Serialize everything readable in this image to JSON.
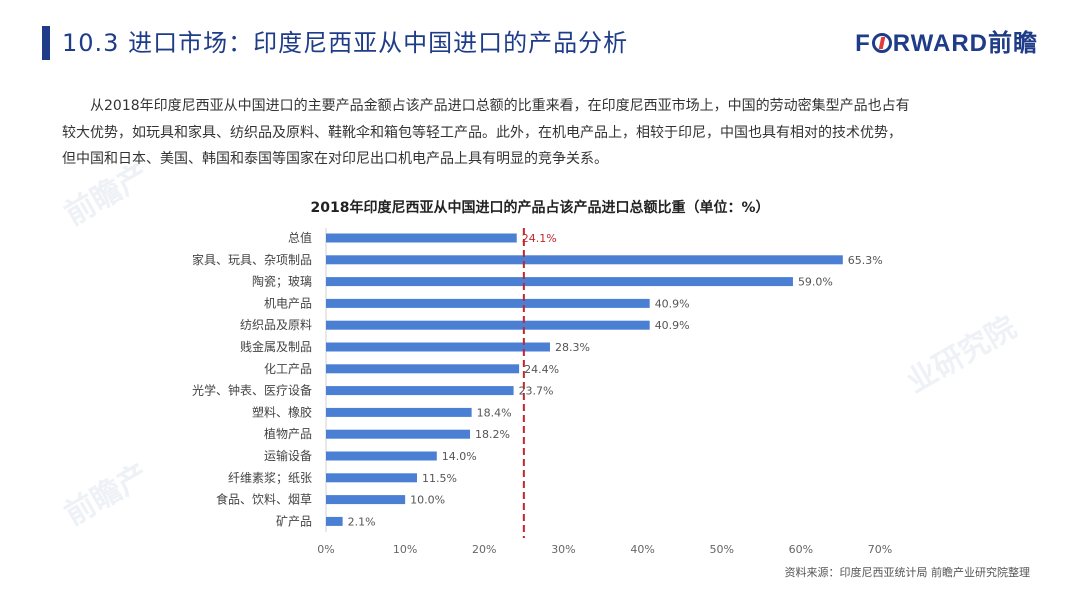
{
  "header": {
    "title": "10.3 进口市场：印度尼西亚从中国进口的产品分析",
    "logo_text_left": "F",
    "logo_text_right": "RWARD前瞻"
  },
  "paragraph": {
    "lines": [
      "从2018年印度尼西亚从中国进口的主要产品金额占该产品进口总额的比重来看，在印度尼西亚市场上，中国的劳动密集型产品也占有",
      "较大优势，如玩具和家具、纺织品及原料、鞋靴伞和箱包等轻工产品。此外，在机电产品上，相较于印尼，中国也具有相对的技术优势，",
      "但中国和日本、美国、韩国和泰国等国家在对印尼出口机电产品上具有明显的竞争关系。"
    ]
  },
  "footer": {
    "source": "资料来源：印度尼西亚统计局  前瞻产业研究院整理"
  },
  "watermark": {
    "texts": [
      "前瞻产",
      "业研究院"
    ]
  },
  "chart_data": {
    "type": "bar",
    "orientation": "horizontal",
    "title": "2018年印度尼西亚从中国进口的产品占该产品进口总额比重（单位：%）",
    "xlabel": "",
    "ylabel": "",
    "categories": [
      "总值",
      "家具、玩具、杂项制品",
      "陶瓷；玻璃",
      "机电产品",
      "纺织品及原料",
      "贱金属及制品",
      "化工产品",
      "光学、钟表、医疗设备",
      "塑料、橡胶",
      "植物产品",
      "运输设备",
      "纤维素浆；纸张",
      "食品、饮料、烟草",
      "矿产品"
    ],
    "values": [
      24.1,
      65.3,
      59.0,
      40.9,
      40.9,
      28.3,
      24.4,
      23.7,
      18.4,
      18.2,
      14.0,
      11.5,
      10.0,
      2.1
    ],
    "data_labels": [
      "24.1%",
      "65.3%",
      "59.0%",
      "40.9%",
      "40.9%",
      "28.3%",
      "24.4%",
      "23.7%",
      "18.4%",
      "18.2%",
      "14.0%",
      "11.5%",
      "10.0%",
      "2.1%"
    ],
    "xlim": [
      0,
      70
    ],
    "xticks": [
      0,
      10,
      20,
      30,
      40,
      50,
      60,
      70
    ],
    "xtick_labels": [
      "0%",
      "10%",
      "20%",
      "30%",
      "40%",
      "50%",
      "60%",
      "70%"
    ],
    "reference_line": {
      "value": 25,
      "style": "dashed",
      "color": "#c0282d"
    },
    "highlight_index": 0,
    "colors": {
      "bar": "#4a7fd4",
      "highlight_label": "#c0282d",
      "label": "#555555",
      "axis": "#d0d0d0"
    },
    "grid": false,
    "legend": "none"
  }
}
